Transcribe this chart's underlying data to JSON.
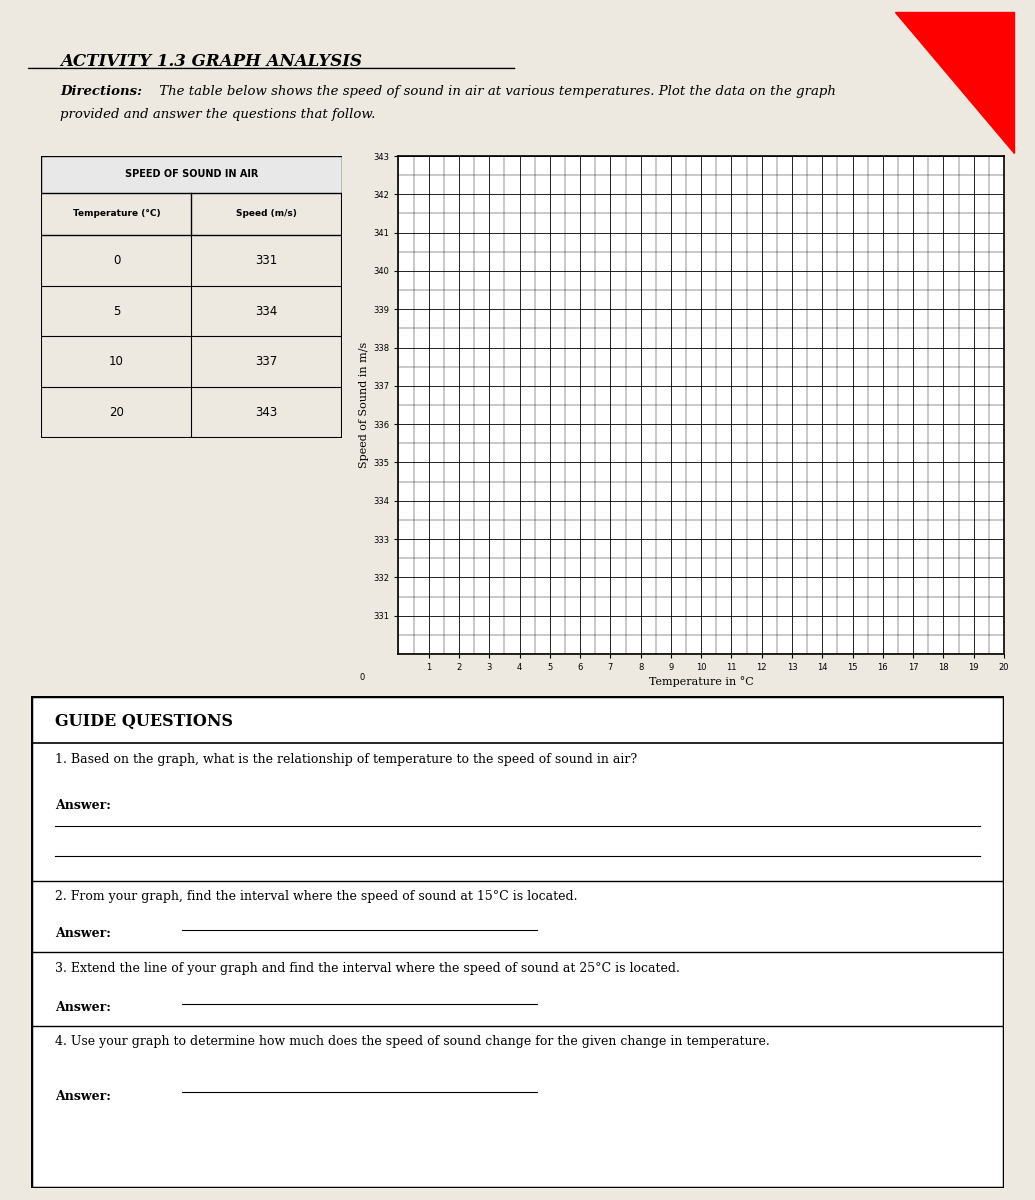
{
  "title": "ACTIVITY 1.3 GRAPH ANALYSIS",
  "directions_bold": "Directions:",
  "directions_rest": " The table below shows the speed of sound in air at various temperatures. Plot the data on the graph",
  "directions_line2": "provided and answer the questions that follow.",
  "table_title": "SPEED OF SOUND IN AIR",
  "table_col1": "Temperature (°C)",
  "table_col2": "Speed (m/s)",
  "table_data": [
    [
      0,
      331
    ],
    [
      5,
      334
    ],
    [
      10,
      337
    ],
    [
      20,
      343
    ]
  ],
  "graph_ylabel": "Speed of Sound in m/s",
  "graph_xlabel": "Temperature in °C",
  "y_ticks": [
    331,
    332,
    333,
    334,
    335,
    336,
    337,
    338,
    339,
    340,
    341,
    342,
    343
  ],
  "x_ticks": [
    1,
    2,
    3,
    4,
    5,
    6,
    7,
    8,
    9,
    10,
    11,
    12,
    13,
    14,
    15,
    16,
    17,
    18,
    19,
    20
  ],
  "y_min": 330,
  "y_max": 343,
  "x_min": 0,
  "x_max": 20,
  "guide_questions_title": "GUIDE QUESTIONS",
  "question1": "1. Based on the graph, what is the relationship of temperature to the speed of sound in air?",
  "question2": "2. From your graph, find the interval where the speed of sound at 15°C is located.",
  "question3": "3. Extend the line of your graph and find the interval where the speed of sound at 25°C is located.",
  "question4": "4. Use your graph to determine how much does the speed of sound change for the given change in temperature.",
  "answer_label": "Answer:",
  "bg_color": "#ede8e0",
  "paper_color": "#ffffff"
}
